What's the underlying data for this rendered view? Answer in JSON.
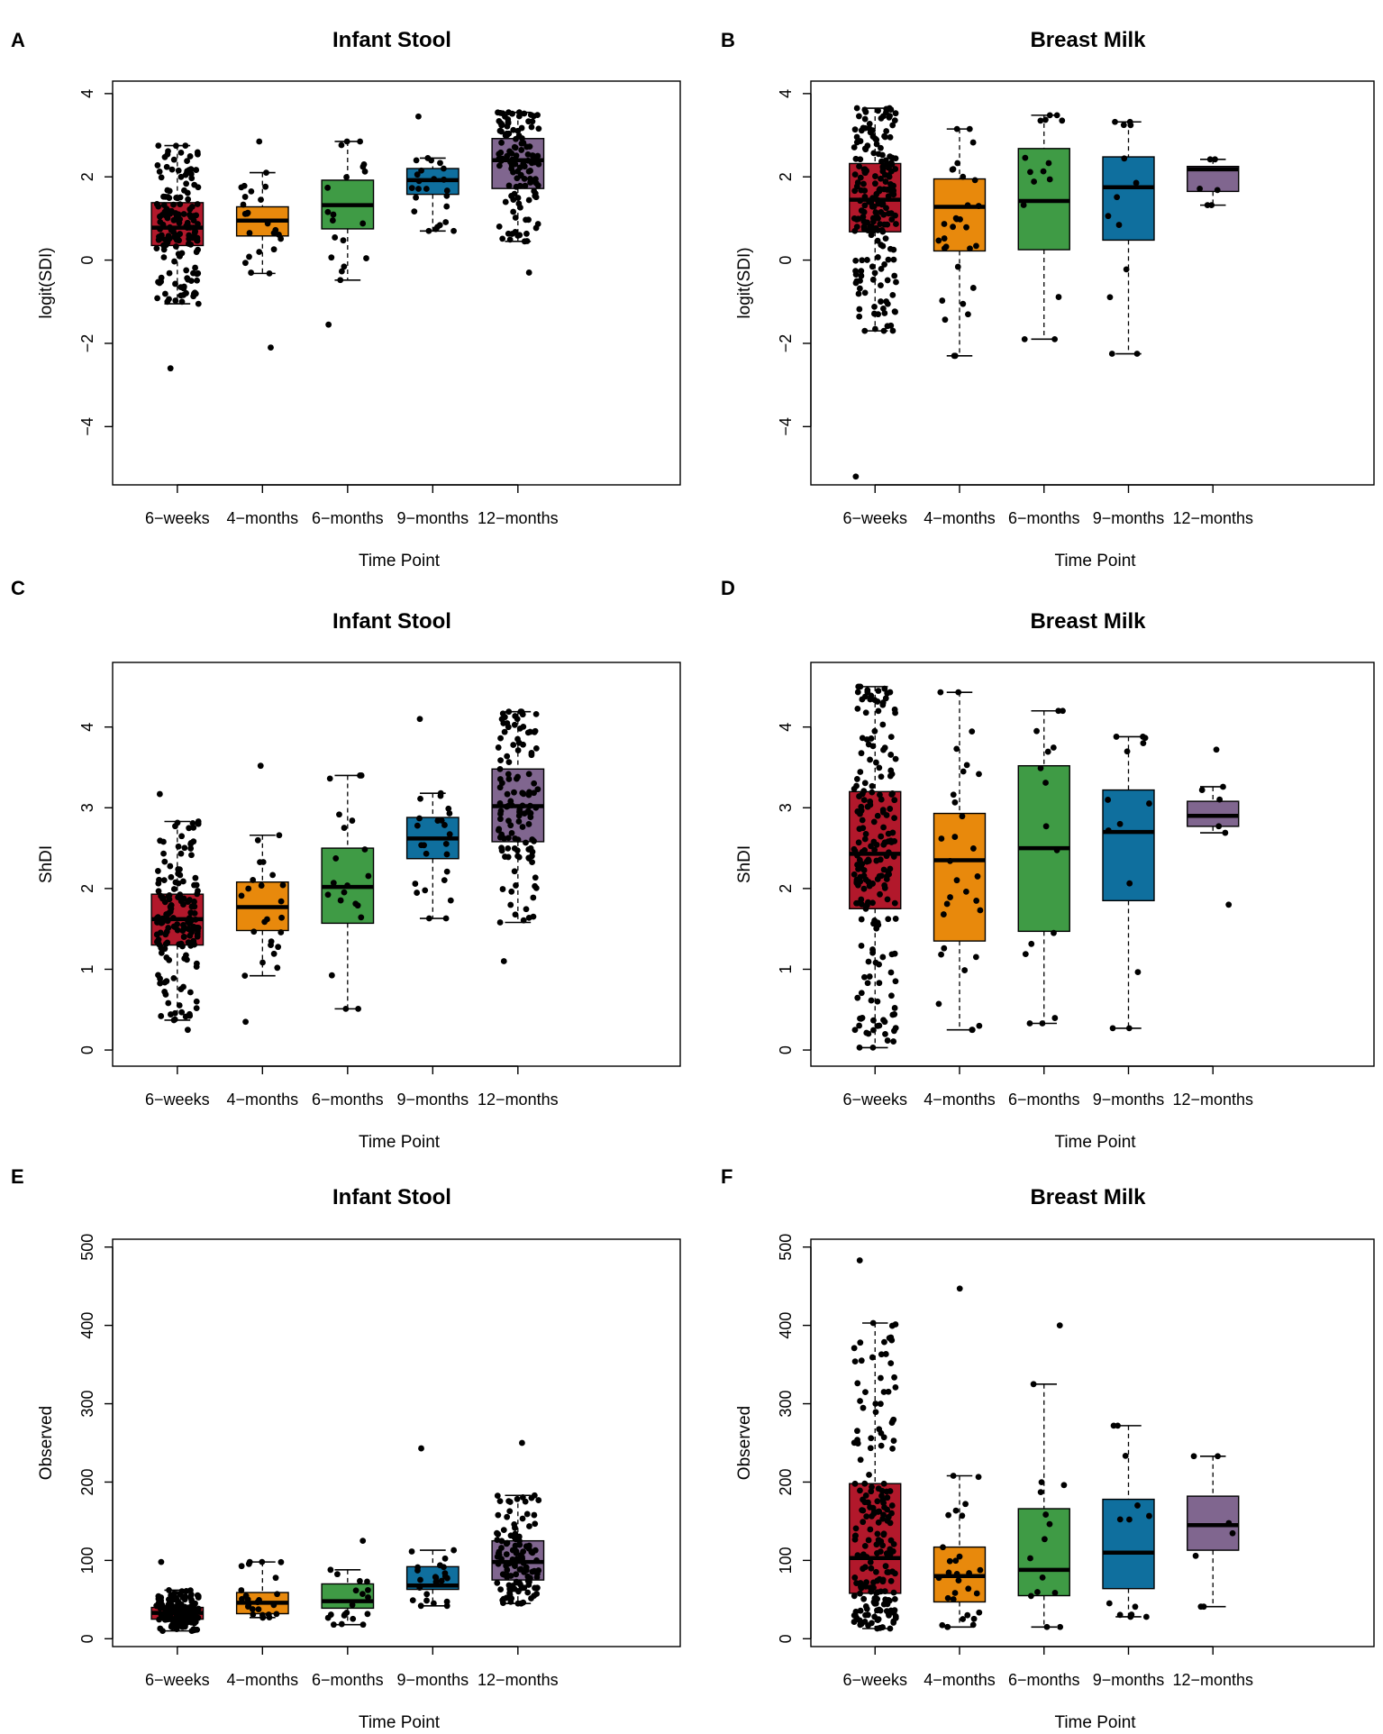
{
  "figure": {
    "colors": {
      "6-weeks": "#b2182b",
      "4-months": "#e8890c",
      "6-months": "#3f9b45",
      "9-months": "#0f6f9e",
      "12-months": "#80668f"
    },
    "categories": [
      "6−weeks",
      "4−months",
      "6−months",
      "9−months",
      "12−months"
    ]
  },
  "chart_data": [
    {
      "panel": "A",
      "type": "boxplot",
      "title": "Infant Stool",
      "xlabel": "Time Point",
      "ylabel": "logit(SDI)",
      "ylim": [
        -5.4,
        4.3
      ],
      "yticks": [
        -4,
        -2,
        0,
        2,
        4
      ],
      "boxes": [
        {
          "q1": 0.35,
          "median": 0.78,
          "q3": 1.38,
          "lo": -1.05,
          "hi": 2.75,
          "n": 160,
          "min": -2.6,
          "max": 2.75
        },
        {
          "q1": 0.58,
          "median": 0.95,
          "q3": 1.28,
          "lo": -0.32,
          "hi": 2.1,
          "n": 25,
          "min": -2.1,
          "max": 2.85
        },
        {
          "q1": 0.75,
          "median": 1.32,
          "q3": 1.92,
          "lo": -0.48,
          "hi": 2.85,
          "n": 20,
          "min": -1.55,
          "max": 2.85
        },
        {
          "q1": 1.58,
          "median": 1.92,
          "q3": 2.2,
          "lo": 0.7,
          "hi": 2.45,
          "n": 25,
          "min": 0.7,
          "max": 3.45
        },
        {
          "q1": 1.72,
          "median": 2.4,
          "q3": 2.92,
          "lo": 0.45,
          "hi": 3.55,
          "n": 120,
          "min": -0.3,
          "max": 3.55
        }
      ]
    },
    {
      "panel": "B",
      "type": "boxplot",
      "title": "Breast Milk",
      "xlabel": "Time Point",
      "ylabel": "logit(SDI)",
      "ylim": [
        -5.4,
        4.3
      ],
      "yticks": [
        -4,
        -2,
        0,
        2,
        4
      ],
      "boxes": [
        {
          "q1": 0.68,
          "median": 1.45,
          "q3": 2.32,
          "lo": -1.7,
          "hi": 3.65,
          "n": 200,
          "min": -5.2,
          "max": 3.65
        },
        {
          "q1": 0.22,
          "median": 1.28,
          "q3": 1.95,
          "lo": -2.3,
          "hi": 3.15,
          "n": 30,
          "min": -2.3,
          "max": 3.15
        },
        {
          "q1": 0.25,
          "median": 1.42,
          "q3": 2.68,
          "lo": -1.9,
          "hi": 3.48,
          "n": 15,
          "min": -1.9,
          "max": 3.48
        },
        {
          "q1": 0.48,
          "median": 1.75,
          "q3": 2.48,
          "lo": -2.25,
          "hi": 3.32,
          "n": 13,
          "min": -2.25,
          "max": 3.32
        },
        {
          "q1": 1.65,
          "median": 2.18,
          "q3": 2.25,
          "lo": 1.32,
          "hi": 2.42,
          "n": 6,
          "min": 1.32,
          "max": 2.42
        }
      ]
    },
    {
      "panel": "C",
      "type": "boxplot",
      "title": "Infant Stool",
      "xlabel": "Time Point",
      "ylabel": "ShDI",
      "ylim": [
        -0.2,
        4.8
      ],
      "yticks": [
        0,
        1,
        2,
        3,
        4
      ],
      "boxes": [
        {
          "q1": 1.3,
          "median": 1.62,
          "q3": 1.93,
          "lo": 0.37,
          "hi": 2.83,
          "n": 160,
          "min": 0.25,
          "max": 3.17
        },
        {
          "q1": 1.48,
          "median": 1.77,
          "q3": 2.08,
          "lo": 0.92,
          "hi": 2.66,
          "n": 25,
          "min": 0.35,
          "max": 3.52
        },
        {
          "q1": 1.57,
          "median": 2.02,
          "q3": 2.5,
          "lo": 0.51,
          "hi": 3.4,
          "n": 20,
          "min": 0.51,
          "max": 3.4
        },
        {
          "q1": 2.37,
          "median": 2.62,
          "q3": 2.88,
          "lo": 1.63,
          "hi": 3.18,
          "n": 25,
          "min": 1.63,
          "max": 4.1
        },
        {
          "q1": 2.58,
          "median": 3.02,
          "q3": 3.48,
          "lo": 1.58,
          "hi": 4.19,
          "n": 120,
          "min": 1.1,
          "max": 4.19
        }
      ]
    },
    {
      "panel": "D",
      "type": "boxplot",
      "title": "Breast Milk",
      "xlabel": "Time Point",
      "ylabel": "ShDI",
      "ylim": [
        -0.2,
        4.8
      ],
      "yticks": [
        0,
        1,
        2,
        3,
        4
      ],
      "boxes": [
        {
          "q1": 1.75,
          "median": 2.43,
          "q3": 3.2,
          "lo": 0.03,
          "hi": 4.5,
          "n": 200,
          "min": 0.03,
          "max": 4.5
        },
        {
          "q1": 1.35,
          "median": 2.35,
          "q3": 2.93,
          "lo": 0.25,
          "hi": 4.43,
          "n": 30,
          "min": 0.25,
          "max": 4.43
        },
        {
          "q1": 1.47,
          "median": 2.5,
          "q3": 3.52,
          "lo": 0.33,
          "hi": 4.2,
          "n": 15,
          "min": 0.33,
          "max": 4.2
        },
        {
          "q1": 1.85,
          "median": 2.7,
          "q3": 3.22,
          "lo": 0.27,
          "hi": 3.88,
          "n": 13,
          "min": 0.27,
          "max": 3.88
        },
        {
          "q1": 2.77,
          "median": 2.9,
          "q3": 3.08,
          "lo": 2.69,
          "hi": 3.26,
          "n": 7,
          "min": 1.8,
          "max": 3.72
        }
      ]
    },
    {
      "panel": "E",
      "type": "boxplot",
      "title": "Infant Stool",
      "xlabel": "Time Point",
      "ylabel": "Observed",
      "ylim": [
        -10,
        510
      ],
      "yticks": [
        0,
        100,
        200,
        300,
        400,
        500
      ],
      "boxes": [
        {
          "q1": 25,
          "median": 33,
          "q3": 40,
          "lo": 10,
          "hi": 62,
          "n": 160,
          "min": 10,
          "max": 98
        },
        {
          "q1": 32,
          "median": 46,
          "q3": 59,
          "lo": 27,
          "hi": 98,
          "n": 25,
          "min": 27,
          "max": 98
        },
        {
          "q1": 39,
          "median": 48,
          "q3": 70,
          "lo": 18,
          "hi": 88,
          "n": 20,
          "min": 18,
          "max": 125
        },
        {
          "q1": 63,
          "median": 68,
          "q3": 92,
          "lo": 42,
          "hi": 113,
          "n": 25,
          "min": 42,
          "max": 243
        },
        {
          "q1": 75,
          "median": 98,
          "q3": 125,
          "lo": 45,
          "hi": 183,
          "n": 120,
          "min": 45,
          "max": 250
        }
      ]
    },
    {
      "panel": "F",
      "type": "boxplot",
      "title": "Breast Milk",
      "xlabel": "Time Point",
      "ylabel": "Observed",
      "ylim": [
        -10,
        510
      ],
      "yticks": [
        0,
        100,
        200,
        300,
        400,
        500
      ],
      "boxes": [
        {
          "q1": 58,
          "median": 103,
          "q3": 198,
          "lo": 13,
          "hi": 403,
          "n": 200,
          "min": 13,
          "max": 483
        },
        {
          "q1": 47,
          "median": 80,
          "q3": 117,
          "lo": 15,
          "hi": 208,
          "n": 30,
          "min": 15,
          "max": 447
        },
        {
          "q1": 55,
          "median": 88,
          "q3": 166,
          "lo": 15,
          "hi": 325,
          "n": 15,
          "min": 15,
          "max": 400
        },
        {
          "q1": 64,
          "median": 110,
          "q3": 178,
          "lo": 28,
          "hi": 272,
          "n": 13,
          "min": 28,
          "max": 272
        },
        {
          "q1": 113,
          "median": 145,
          "q3": 182,
          "lo": 41,
          "hi": 233,
          "n": 7,
          "min": 41,
          "max": 233
        }
      ]
    }
  ]
}
